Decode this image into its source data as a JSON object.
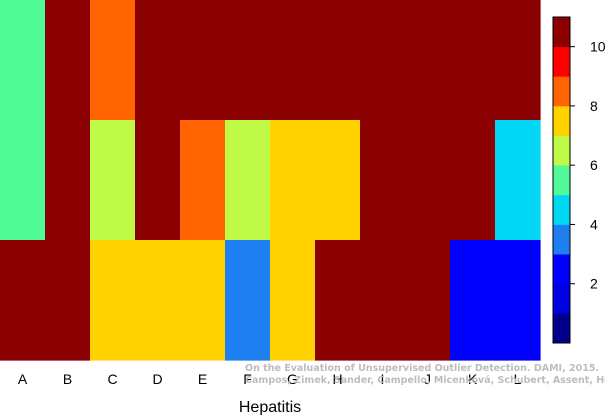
{
  "chart_data": {
    "type": "heatmap",
    "xlabel": "Hepatitis",
    "columns": [
      "A",
      "B",
      "C",
      "D",
      "E",
      "F",
      "G",
      "H",
      "I",
      "J",
      "K",
      "L"
    ],
    "rows": 3,
    "values": [
      [
        5,
        10,
        8,
        10,
        10,
        10,
        10,
        10,
        10,
        10,
        10,
        10
      ],
      [
        5,
        10,
        6,
        10,
        8,
        6,
        7,
        7,
        10,
        10,
        10,
        4
      ],
      [
        10,
        10,
        7,
        7,
        7,
        3,
        7,
        10,
        10,
        10,
        2,
        2
      ]
    ],
    "colorbar": {
      "min": 0,
      "max": 11,
      "ticks": [
        2,
        4,
        6,
        8,
        10
      ],
      "bins": [
        {
          "from": 0,
          "to": 1,
          "color": "#00008b"
        },
        {
          "from": 1,
          "to": 2,
          "color": "#0000e0"
        },
        {
          "from": 2,
          "to": 3,
          "color": "#0000ff"
        },
        {
          "from": 3,
          "to": 4,
          "color": "#1e7ff0"
        },
        {
          "from": 4,
          "to": 5,
          "color": "#00d7f5"
        },
        {
          "from": 5,
          "to": 6,
          "color": "#50fa96"
        },
        {
          "from": 6,
          "to": 7,
          "color": "#befa46"
        },
        {
          "from": 7,
          "to": 8,
          "color": "#ffd200"
        },
        {
          "from": 8,
          "to": 9,
          "color": "#ff6400"
        },
        {
          "from": 9,
          "to": 10,
          "color": "#ff0000"
        },
        {
          "from": 10,
          "to": 11,
          "color": "#8b0000"
        }
      ]
    },
    "colormap": {
      "2": "#0000ff",
      "3": "#1e7ff0",
      "4": "#00d7f5",
      "5": "#50fa96",
      "6": "#befa46",
      "7": "#ffd200",
      "8": "#ff6400",
      "10": "#8b0000"
    }
  },
  "watermark": {
    "line1": "On the Evaluation of Unsupervised Outlier Detection. DAMI, 2015.",
    "line2": "Campos, Zimek, Sander, Campello, Micenková, Schubert, Assent, Houle"
  }
}
